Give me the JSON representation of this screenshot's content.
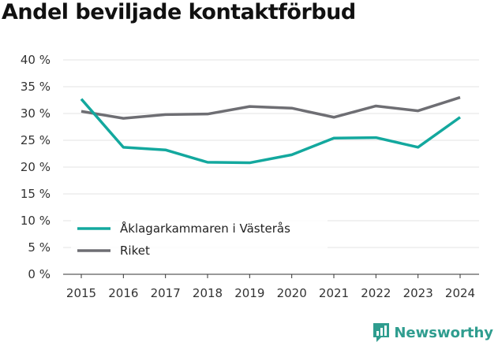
{
  "chart_data": {
    "type": "line",
    "title": "Andel beviljade kontaktförbud",
    "xlabel": "",
    "ylabel": "",
    "categories": [
      "2015",
      "2016",
      "2017",
      "2018",
      "2019",
      "2020",
      "2021",
      "2022",
      "2023",
      "2024"
    ],
    "ylim": [
      0,
      40
    ],
    "yticks": [
      0,
      5,
      10,
      15,
      20,
      25,
      30,
      35,
      40
    ],
    "ytick_labels": [
      "0 %",
      "5 %",
      "10 %",
      "15 %",
      "20 %",
      "25 %",
      "30 %",
      "35 %",
      "40 %"
    ],
    "grid": true,
    "legend_position": "bottom-left",
    "series": [
      {
        "name": "Åklagarkammaren i Västerås",
        "color": "#13a89e",
        "values": [
          32.7,
          23.7,
          23.2,
          20.9,
          20.8,
          22.3,
          25.4,
          25.5,
          23.7,
          29.3
        ]
      },
      {
        "name": "Riket",
        "color": "#6e6e73",
        "values": [
          30.4,
          29.1,
          29.8,
          29.9,
          31.3,
          31.0,
          29.3,
          31.4,
          30.5,
          33.0
        ]
      }
    ]
  },
  "brand": {
    "name": "Newsworthy",
    "icon": "bar-chart-logo-icon",
    "color": "#2f9d8f"
  }
}
